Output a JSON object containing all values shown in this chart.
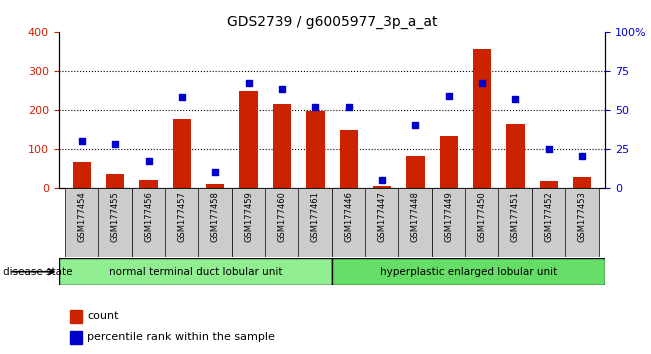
{
  "title": "GDS2739 / g6005977_3p_a_at",
  "samples": [
    "GSM177454",
    "GSM177455",
    "GSM177456",
    "GSM177457",
    "GSM177458",
    "GSM177459",
    "GSM177460",
    "GSM177461",
    "GSM177446",
    "GSM177447",
    "GSM177448",
    "GSM177449",
    "GSM177450",
    "GSM177451",
    "GSM177452",
    "GSM177453"
  ],
  "counts": [
    65,
    35,
    20,
    175,
    10,
    248,
    215,
    196,
    148,
    5,
    80,
    132,
    355,
    163,
    18,
    28
  ],
  "percentiles": [
    30,
    28,
    17,
    58,
    10,
    67,
    63,
    52,
    52,
    5,
    40,
    59,
    67,
    57,
    25,
    20
  ],
  "n_group1": 8,
  "group1_label": "normal terminal duct lobular unit",
  "group2_label": "hyperplastic enlarged lobular unit",
  "group_color": "#90EE90",
  "group_color2": "#66DD66",
  "bar_color": "#CC2200",
  "scatter_color": "#0000CC",
  "left_ylim": [
    0,
    400
  ],
  "right_ylim": [
    0,
    100
  ],
  "left_yticks": [
    0,
    100,
    200,
    300,
    400
  ],
  "right_yticks": [
    0,
    25,
    50,
    75,
    100
  ],
  "right_yticklabels": [
    "0",
    "25",
    "50",
    "75",
    "100%"
  ],
  "disease_state_label": "disease state",
  "legend_count_label": "count",
  "legend_pct_label": "percentile rank within the sample",
  "tick_bg_color": "#CCCCCC",
  "title_fontsize": 10
}
